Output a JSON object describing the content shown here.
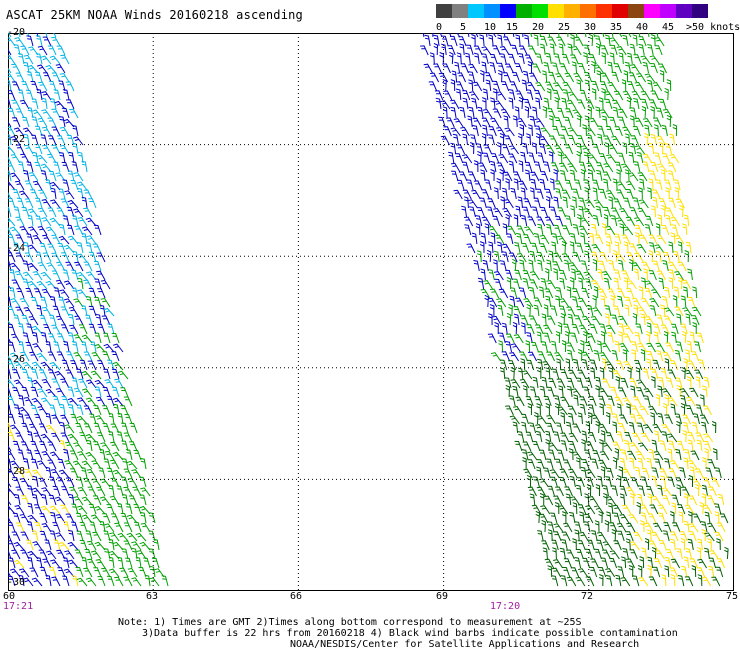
{
  "title": "ASCAT 25KM NOAA Winds 20160218 ascending",
  "legend": {
    "swatches": [
      "#404040",
      "#808080",
      "#00c8ff",
      "#0090ff",
      "#0000ff",
      "#00b000",
      "#00e000",
      "#ffe000",
      "#ffb000",
      "#ff7000",
      "#ff3000",
      "#e00000",
      "#8b4513",
      "#ff00ff",
      "#c000ff",
      "#6000c0",
      "#300080"
    ],
    "labels": [
      "0",
      "5",
      "10",
      "15",
      "20",
      "25",
      "30",
      "35",
      "40",
      "45",
      ">50 knots"
    ]
  },
  "axes": {
    "lat_labels": [
      "-20",
      "-22",
      "-24",
      "-26",
      "-28",
      "-30"
    ],
    "lon_labels": [
      "60",
      "63",
      "66",
      "69",
      "72",
      "75"
    ]
  },
  "times": {
    "left": "17:21",
    "right": "17:20"
  },
  "notes": {
    "line1": "Note: 1) Times are GMT 2)Times along bottom correspond to measurement at ~25S",
    "line2": "3)Data buffer is 22 hrs from 20160218 4) Black wind barbs indicate possible contamination",
    "line3": "NOAA/NESDIS/Center for Satellite Applications and Research"
  },
  "map": {
    "lon_range": [
      60,
      75
    ],
    "lat_range": [
      -30,
      -20
    ],
    "grid": true,
    "swath_colors": {
      "blue": "#0000c8",
      "cyan": "#00b4e6",
      "green": "#00a000",
      "darkgreen": "#006000",
      "yellow": "#ffe000"
    }
  }
}
